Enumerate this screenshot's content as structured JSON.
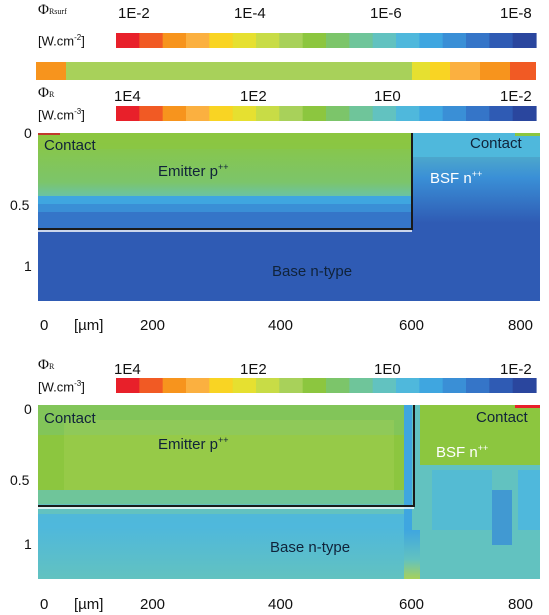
{
  "colors": [
    "#e8202a",
    "#f15a24",
    "#f7941d",
    "#fbb040",
    "#f9d423",
    "#e6e030",
    "#c8dc46",
    "#a8d15a",
    "#8cc63f",
    "#7cc56a",
    "#6fc59a",
    "#62c2c0",
    "#4fb8dc",
    "#3fa6e0",
    "#3a8fd6",
    "#3575c8",
    "#2f5bb4",
    "#2a469e"
  ],
  "legends": {
    "surf": {
      "sym": "Φ",
      "sub": "Rsurf",
      "unit": "[W.cm",
      "exp": "-2",
      "close": "]",
      "ticks": [
        "1E-2",
        "1E-4",
        "1E-6",
        "1E-8"
      ]
    },
    "vol1": {
      "sym": "Φ",
      "sub": "R",
      "unit": "[W.cm",
      "exp": "-3",
      "close": "]",
      "ticks": [
        "1E4",
        "1E2",
        "1E0",
        "1E-2"
      ]
    },
    "vol2": {
      "sym": "Φ",
      "sub": "R",
      "unit": "[W.cm",
      "exp": "-3",
      "close": "]",
      "ticks": [
        "1E4",
        "1E2",
        "1E0",
        "1E-2"
      ]
    }
  },
  "panel1": {
    "y_ticks": [
      "0",
      "0.5",
      "1"
    ],
    "x_ticks": [
      "0",
      "200",
      "400",
      "600",
      "800"
    ],
    "x_unit": "[µm]",
    "labels": {
      "contact_left": "Contact",
      "contact_right": "Contact",
      "emitter": "Emitter p",
      "emitter_sup": "++",
      "bsf": "BSF n",
      "bsf_sup": "++",
      "base": "Base n-type"
    }
  },
  "panel2": {
    "y_ticks": [
      "0",
      "0.5",
      "1"
    ],
    "x_ticks": [
      "0",
      "200",
      "400",
      "600",
      "800"
    ],
    "x_unit": "[µm]",
    "labels": {
      "contact_left": "Contact",
      "contact_right": "Contact",
      "emitter": "Emitter p",
      "emitter_sup": "++",
      "bsf": "BSF n",
      "bsf_sup": "++",
      "base": "Base n-type"
    }
  }
}
